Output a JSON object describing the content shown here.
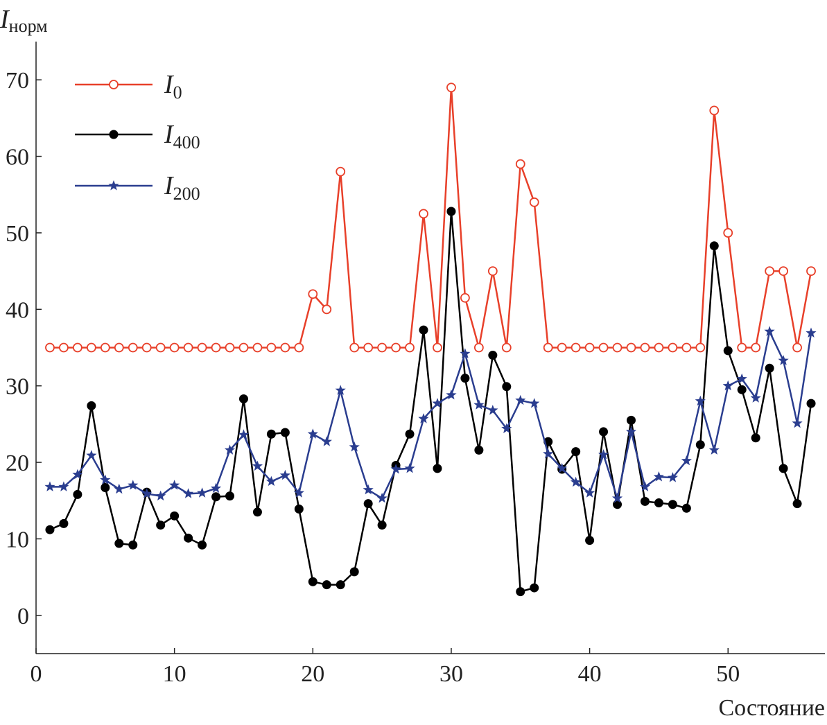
{
  "chart_data": {
    "type": "line",
    "title": "",
    "xlabel": "Состояние",
    "ylabel": {
      "main": "I",
      "sub": "норм"
    },
    "xlim": [
      0,
      57
    ],
    "ylim": [
      -5,
      75
    ],
    "xticks": [
      0,
      10,
      20,
      30,
      40,
      50
    ],
    "yticks": [
      0,
      10,
      20,
      30,
      40,
      50,
      60,
      70
    ],
    "grid": false,
    "legend_position": "top-left",
    "x": [
      1,
      2,
      3,
      4,
      5,
      6,
      7,
      8,
      9,
      10,
      11,
      12,
      13,
      14,
      15,
      16,
      17,
      18,
      19,
      20,
      21,
      22,
      23,
      24,
      25,
      26,
      27,
      28,
      29,
      30,
      31,
      32,
      33,
      34,
      35,
      36,
      37,
      38,
      39,
      40,
      41,
      42,
      43,
      44,
      45,
      46,
      47,
      48,
      49,
      50,
      51,
      52,
      53,
      54,
      55,
      56
    ],
    "series": [
      {
        "name": "I",
        "sub": "0",
        "color": "#e8402a",
        "marker": "open-circle",
        "values": [
          35,
          35,
          35,
          35,
          35,
          35,
          35,
          35,
          35,
          35,
          35,
          35,
          35,
          35,
          35,
          35,
          35,
          35,
          35,
          42,
          40,
          58,
          35,
          35,
          35,
          35,
          35,
          52.5,
          35,
          69,
          41.5,
          35,
          45,
          35,
          59,
          54,
          35,
          35,
          35,
          35,
          35,
          35,
          35,
          35,
          35,
          35,
          35,
          35,
          66,
          50,
          35,
          35,
          45,
          45,
          35,
          45
        ]
      },
      {
        "name": "I",
        "sub": "400",
        "color": "#000000",
        "marker": "filled-circle",
        "values": [
          11.2,
          12,
          15.8,
          27.4,
          16.7,
          9.4,
          9.2,
          16.1,
          11.8,
          13,
          10.1,
          9.2,
          15.5,
          15.6,
          28.3,
          13.5,
          23.7,
          23.9,
          13.9,
          4.4,
          4,
          4,
          5.7,
          14.6,
          11.8,
          19.6,
          23.7,
          37.3,
          19.2,
          52.8,
          31,
          21.6,
          34,
          29.9,
          3.1,
          3.6,
          22.7,
          19.1,
          21.4,
          9.8,
          24,
          14.5,
          25.5,
          14.9,
          14.7,
          14.5,
          14,
          22.3,
          48.3,
          34.6,
          29.5,
          23.2,
          32.3,
          19.2,
          14.6,
          27.7
        ]
      },
      {
        "name": "I",
        "sub": "200",
        "color": "#2a3d8f",
        "marker": "star",
        "values": [
          16.8,
          16.8,
          18.4,
          20.9,
          17.7,
          16.5,
          17,
          15.9,
          15.6,
          17,
          15.9,
          16,
          16.6,
          21.6,
          23.6,
          19.5,
          17.5,
          18.3,
          16,
          23.7,
          22.7,
          29.4,
          22,
          16.4,
          15.3,
          19.1,
          19.2,
          25.7,
          27.7,
          28.8,
          34.2,
          27.5,
          26.8,
          24.4,
          28.1,
          27.7,
          21.1,
          19.2,
          17.4,
          16,
          21,
          15.3,
          24,
          16.8,
          18.1,
          18,
          20.2,
          28,
          21.6,
          30,
          30.9,
          28.4,
          37.1,
          33.3,
          25.1,
          36.9
        ]
      }
    ]
  }
}
